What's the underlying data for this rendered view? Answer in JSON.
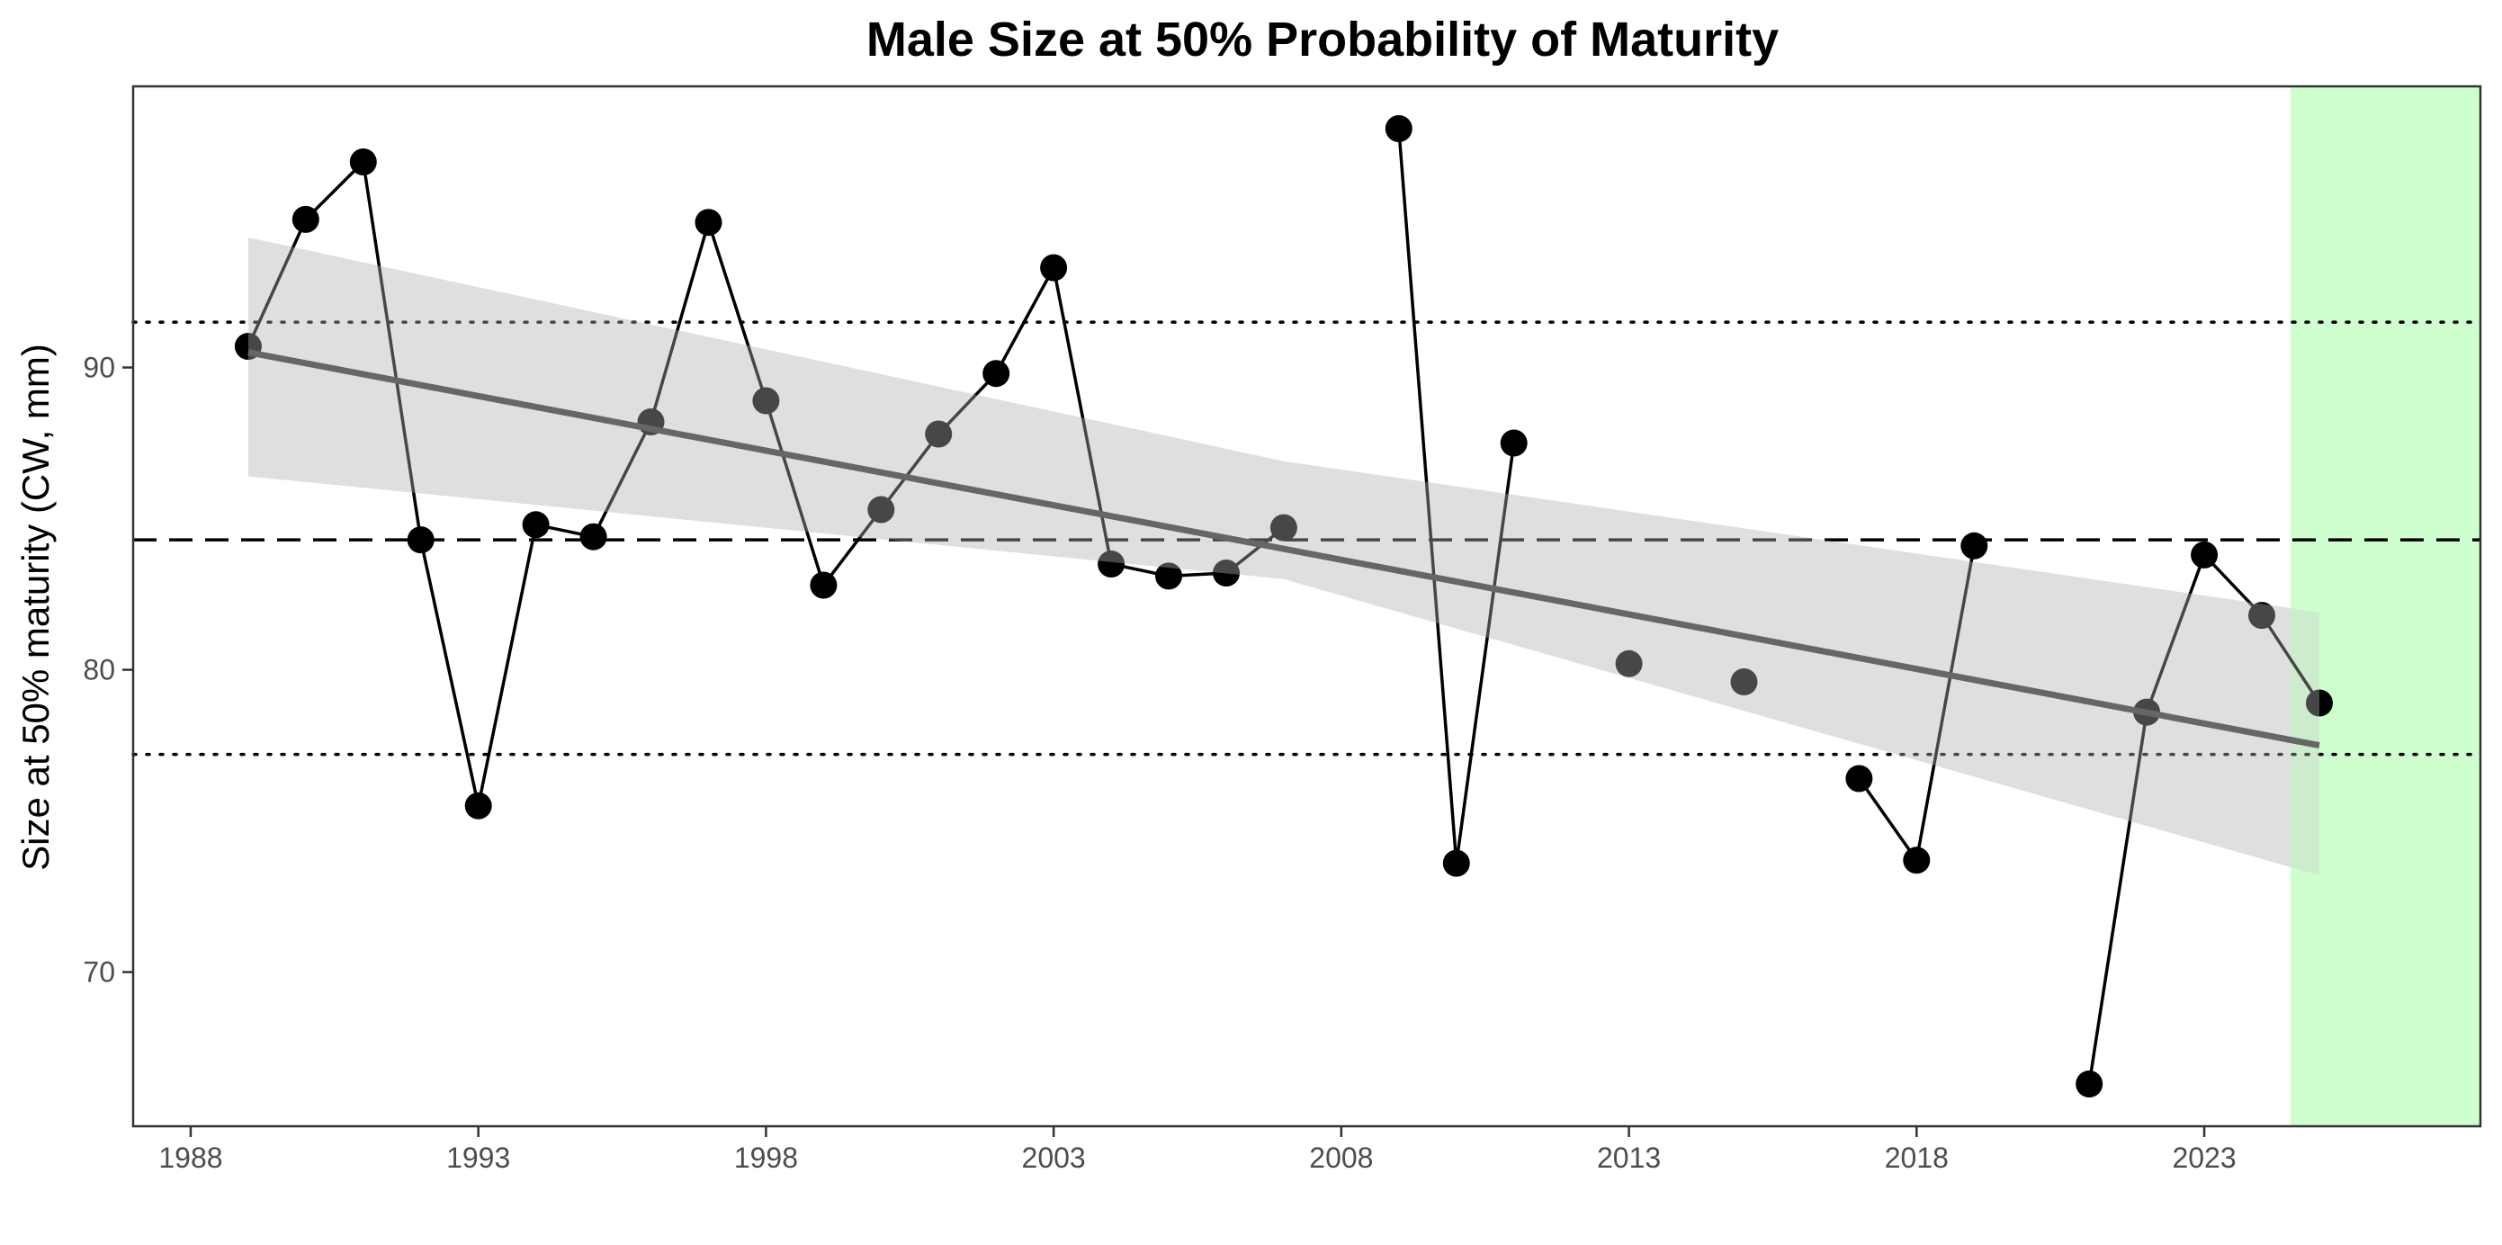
{
  "chart_data": {
    "type": "line",
    "title": "Male Size at 50% Probability of Maturity",
    "xlabel": "",
    "ylabel": "Size at 50% maturity (CW, mm)",
    "xlim": [
      1987,
      2027.8
    ],
    "ylim": [
      64.9,
      99.3
    ],
    "x_ticks": [
      1988,
      1993,
      1998,
      2003,
      2008,
      2013,
      2018,
      2023
    ],
    "y_ticks": [
      70,
      80,
      90
    ],
    "grid": false,
    "points": [
      {
        "x": 1989,
        "y": 90.7
      },
      {
        "x": 1990,
        "y": 94.9
      },
      {
        "x": 1991,
        "y": 96.8
      },
      {
        "x": 1992,
        "y": 84.3
      },
      {
        "x": 1993,
        "y": 75.5
      },
      {
        "x": 1994,
        "y": 84.8
      },
      {
        "x": 1995,
        "y": 84.4
      },
      {
        "x": 1996,
        "y": 88.2
      },
      {
        "x": 1997,
        "y": 94.8
      },
      {
        "x": 1998,
        "y": 88.9
      },
      {
        "x": 1999,
        "y": 82.8
      },
      {
        "x": 2000,
        "y": 85.3
      },
      {
        "x": 2001,
        "y": 87.8
      },
      {
        "x": 2002,
        "y": 89.8
      },
      {
        "x": 2003,
        "y": 93.3
      },
      {
        "x": 2004,
        "y": 83.5
      },
      {
        "x": 2005,
        "y": 83.1
      },
      {
        "x": 2006,
        "y": 83.2
      },
      {
        "x": 2007,
        "y": 84.7
      },
      {
        "x": 2009,
        "y": 97.9
      },
      {
        "x": 2010,
        "y": 73.6
      },
      {
        "x": 2011,
        "y": 87.5
      },
      {
        "x": 2013,
        "y": 80.2
      },
      {
        "x": 2015,
        "y": 79.6
      },
      {
        "x": 2017,
        "y": 76.4
      },
      {
        "x": 2018,
        "y": 73.7
      },
      {
        "x": 2019,
        "y": 84.1
      },
      {
        "x": 2021,
        "y": 66.3
      },
      {
        "x": 2022,
        "y": 78.6
      },
      {
        "x": 2023,
        "y": 83.8
      },
      {
        "x": 2024,
        "y": 81.8
      },
      {
        "x": 2025,
        "y": 78.9
      }
    ],
    "segments": [
      [
        1989,
        1990,
        1991,
        1992,
        1993,
        1994,
        1995,
        1996,
        1997,
        1998,
        1999,
        2000,
        2001,
        2002,
        2003,
        2004,
        2005,
        2006,
        2007
      ],
      [
        2009,
        2010,
        2011
      ],
      [
        2017,
        2018,
        2019
      ],
      [
        2021,
        2022,
        2023,
        2024,
        2025
      ]
    ],
    "trend": {
      "x": [
        1989,
        2025
      ],
      "y": [
        90.5,
        77.5
      ],
      "ci_lower": [
        86.4,
        73.2
      ],
      "ci_upper": [
        94.3,
        81.9
      ],
      "mid_ci": {
        "x": 2007,
        "lower": 83.0,
        "upper": 86.9
      }
    },
    "reference_lines": {
      "mean": 84.3,
      "upper": 91.5,
      "lower": 77.2
    },
    "highlight_region": {
      "x0": 2024.5,
      "x1": 2027.8
    },
    "colors": {
      "points": "#000000",
      "line": "#000000",
      "trend": "#666666",
      "ci_band": "#d9d9d9",
      "highlight": "#ccffcc",
      "axis_text": "#4d4d4d"
    }
  }
}
